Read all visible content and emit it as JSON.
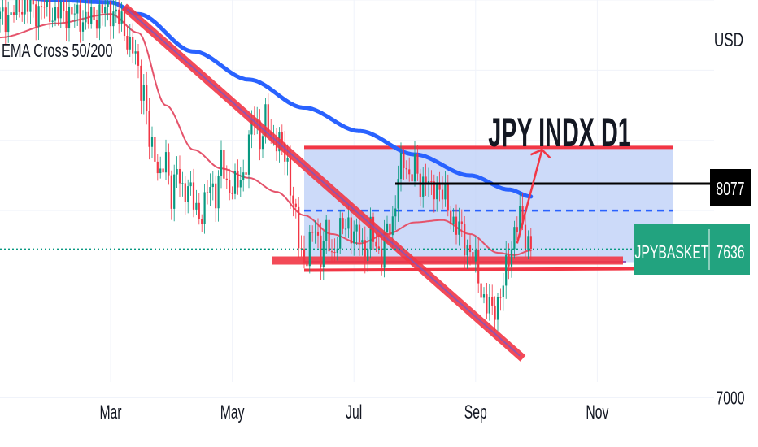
{
  "chart_data": {
    "type": "candlestick",
    "title": "JPY INDX D1",
    "indicator_label": "EMA Cross 50/200",
    "currency_label": "USD",
    "symbol_tag": "JPYBASKET",
    "last_price": 7636,
    "level_label": 8077,
    "y_ticks": [
      7000
    ],
    "x_ticks": [
      "Mar",
      "May",
      "Jul",
      "Sep",
      "Nov"
    ],
    "ylim": [
      6790,
      8700
    ],
    "grid": true,
    "colors": {
      "up": "#089981",
      "down": "#f23645",
      "ema200": "#2962ff",
      "ema50": "#e5536b",
      "trendline": "#f23645",
      "range_fill": "#bbcdf7",
      "dashed_level": "#2962ff",
      "tag_green": "#22a37f",
      "tag_black": "#000000"
    },
    "levels": {
      "range_top": 8070,
      "range_mid": 7800,
      "range_bottom": 7580
    },
    "close_anchors": [
      [
        0,
        8620
      ],
      [
        4,
        8640
      ],
      [
        8,
        8685
      ],
      [
        12,
        8655
      ],
      [
        16,
        8670
      ],
      [
        20,
        8640
      ],
      [
        24,
        8648
      ],
      [
        28,
        8630
      ],
      [
        32,
        8615
      ],
      [
        36,
        8645
      ],
      [
        40,
        8660
      ],
      [
        44,
        8600
      ],
      [
        48,
        8480
      ],
      [
        52,
        8320
      ],
      [
        54,
        8080
      ],
      [
        56,
        8060
      ],
      [
        58,
        7930
      ],
      [
        60,
        8020
      ],
      [
        62,
        7880
      ],
      [
        64,
        7960
      ],
      [
        66,
        7880
      ],
      [
        68,
        7920
      ],
      [
        70,
        7820
      ],
      [
        72,
        7780
      ],
      [
        74,
        7830
      ],
      [
        76,
        7900
      ],
      [
        78,
        7880
      ],
      [
        80,
        8010
      ],
      [
        82,
        7900
      ],
      [
        84,
        7920
      ],
      [
        86,
        7900
      ],
      [
        88,
        7950
      ],
      [
        90,
        8100
      ],
      [
        92,
        8200
      ],
      [
        94,
        8110
      ],
      [
        96,
        8190
      ],
      [
        98,
        8100
      ],
      [
        100,
        8120
      ],
      [
        102,
        8060
      ],
      [
        104,
        8000
      ],
      [
        106,
        7840
      ],
      [
        108,
        7660
      ],
      [
        110,
        7590
      ],
      [
        112,
        7650
      ],
      [
        114,
        7730
      ],
      [
        116,
        7620
      ],
      [
        118,
        7700
      ],
      [
        120,
        7610
      ],
      [
        122,
        7680
      ],
      [
        124,
        7720
      ],
      [
        126,
        7760
      ],
      [
        128,
        7680
      ],
      [
        130,
        7700
      ],
      [
        132,
        7620
      ],
      [
        134,
        7700
      ],
      [
        136,
        7660
      ],
      [
        138,
        7610
      ],
      [
        140,
        7710
      ],
      [
        142,
        7760
      ],
      [
        144,
        7940
      ],
      [
        146,
        8010
      ],
      [
        148,
        7960
      ],
      [
        150,
        7980
      ],
      [
        152,
        7900
      ],
      [
        154,
        7960
      ],
      [
        156,
        7860
      ],
      [
        158,
        7920
      ],
      [
        160,
        7880
      ],
      [
        162,
        7800
      ],
      [
        164,
        7760
      ],
      [
        166,
        7720
      ],
      [
        168,
        7660
      ],
      [
        170,
        7640
      ],
      [
        172,
        7560
      ],
      [
        174,
        7460
      ],
      [
        176,
        7400
      ],
      [
        178,
        7360
      ],
      [
        180,
        7420
      ],
      [
        182,
        7480
      ],
      [
        184,
        7600
      ],
      [
        186,
        7720
      ],
      [
        188,
        7760
      ],
      [
        190,
        7690
      ],
      [
        192,
        7660
      ]
    ],
    "ema200_anchors": [
      [
        0,
        8720
      ],
      [
        20,
        8700
      ],
      [
        40,
        8690
      ],
      [
        50,
        8640
      ],
      [
        70,
        8480
      ],
      [
        90,
        8360
      ],
      [
        110,
        8240
      ],
      [
        130,
        8140
      ],
      [
        150,
        8040
      ],
      [
        170,
        7950
      ],
      [
        184,
        7890
      ],
      [
        192,
        7860
      ]
    ],
    "ema50_anchors": [
      [
        0,
        8540
      ],
      [
        20,
        8600
      ],
      [
        40,
        8640
      ],
      [
        50,
        8560
      ],
      [
        60,
        8250
      ],
      [
        70,
        8060
      ],
      [
        80,
        7980
      ],
      [
        90,
        7940
      ],
      [
        100,
        7880
      ],
      [
        110,
        7780
      ],
      [
        120,
        7700
      ],
      [
        130,
        7660
      ],
      [
        140,
        7700
      ],
      [
        150,
        7750
      ],
      [
        160,
        7760
      ],
      [
        170,
        7700
      ],
      [
        180,
        7620
      ],
      [
        186,
        7610
      ],
      [
        192,
        7630
      ]
    ],
    "trendline": {
      "start": [
        46,
        8660
      ],
      "end": [
        188,
        7180
      ]
    },
    "projection_arrow": {
      "start": [
        187,
        7660
      ],
      "end": [
        196,
        8060
      ]
    },
    "month_positions": {
      "Mar": 40,
      "May": 84,
      "Jul": 128,
      "Sep": 172,
      "Nov": 216
    }
  }
}
